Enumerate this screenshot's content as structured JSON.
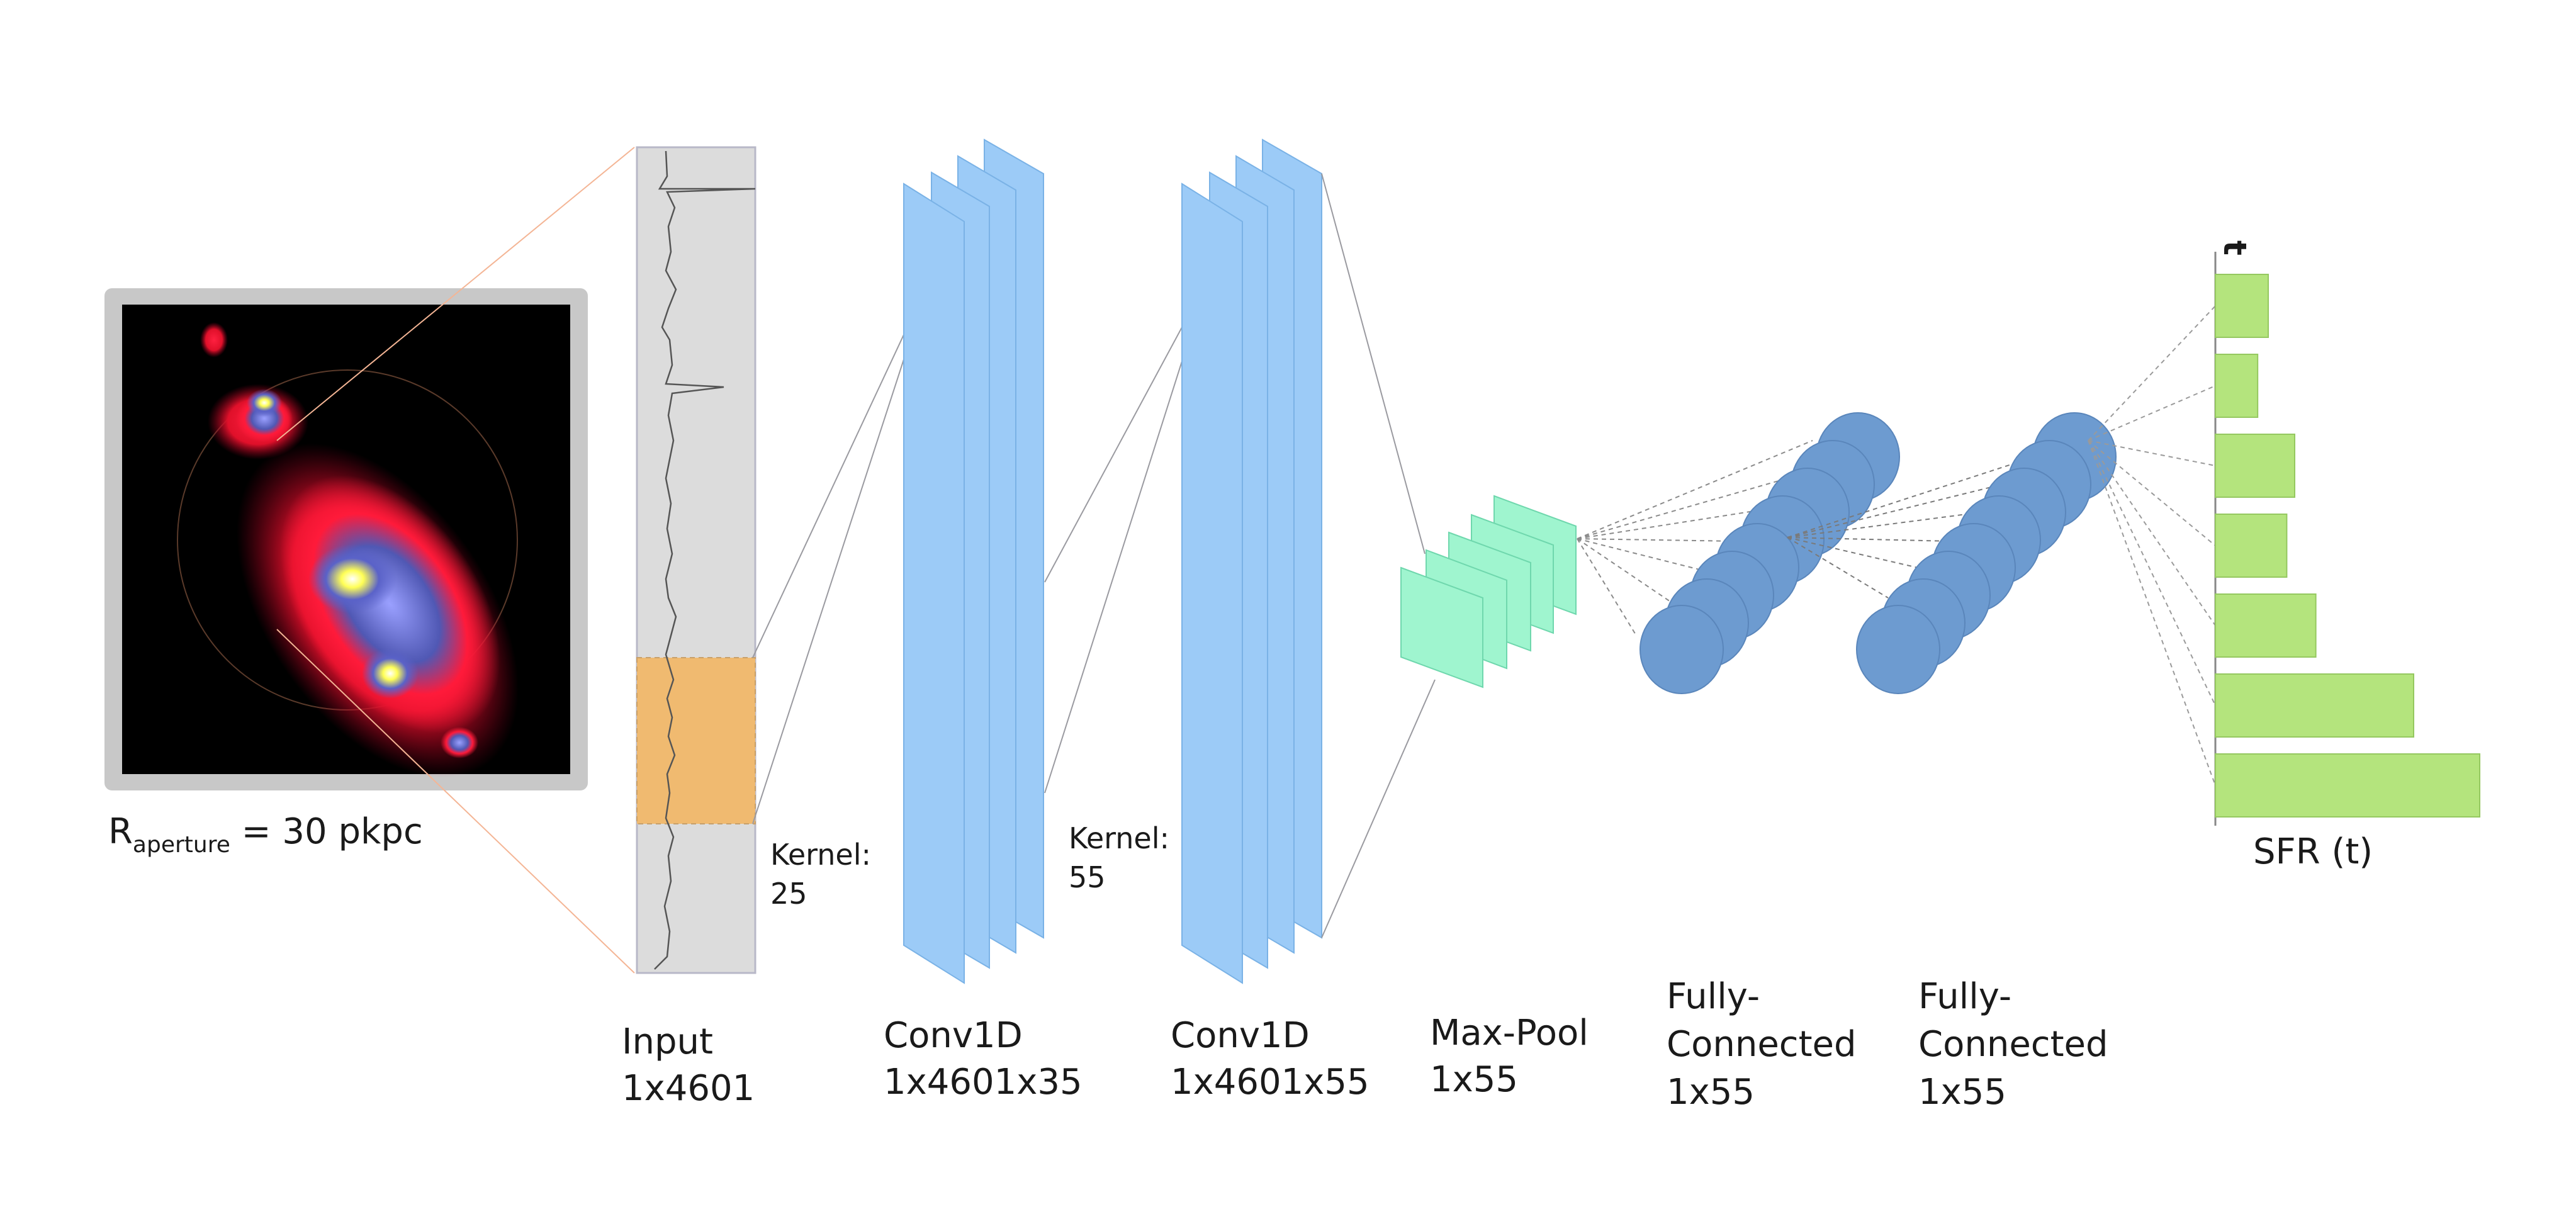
{
  "galaxy": {
    "label_main": "R",
    "label_sub": "aperture",
    "label_rest": " = 30 pkpc"
  },
  "layers": {
    "input": {
      "name": "Input",
      "shape": "1x4601"
    },
    "conv1": {
      "name": "Conv1D",
      "shape": "1x4601x35",
      "kernel_label": "Kernel:",
      "kernel_size": "25"
    },
    "conv2": {
      "name": "Conv1D",
      "shape": "1x4601x55",
      "kernel_label": "Kernel:",
      "kernel_size": "55"
    },
    "maxpool": {
      "name": "Max-Pool",
      "shape": "1x55"
    },
    "fc1": {
      "name_line1": "Fully-",
      "name_line2": "Connected",
      "shape": "1x55"
    },
    "fc2": {
      "name_line1": "Fully-",
      "name_line2": "Connected",
      "shape": "1x55"
    }
  },
  "output": {
    "axis_label": "t",
    "xlabel": "SFR (t)",
    "bars": [
      0.2,
      0.16,
      0.3,
      0.27,
      0.38,
      0.75,
      1.0
    ]
  },
  "colors": {
    "conv_fill": "#9ccbf7",
    "conv_stroke": "#7ab2e6",
    "pool_fill": "#9ff5cf",
    "fc_fill": "#6d9bd0",
    "bar_fill": "#b4e47d",
    "kernel_fill": "#f0ba70",
    "input_fill": "#dcdcdc"
  }
}
